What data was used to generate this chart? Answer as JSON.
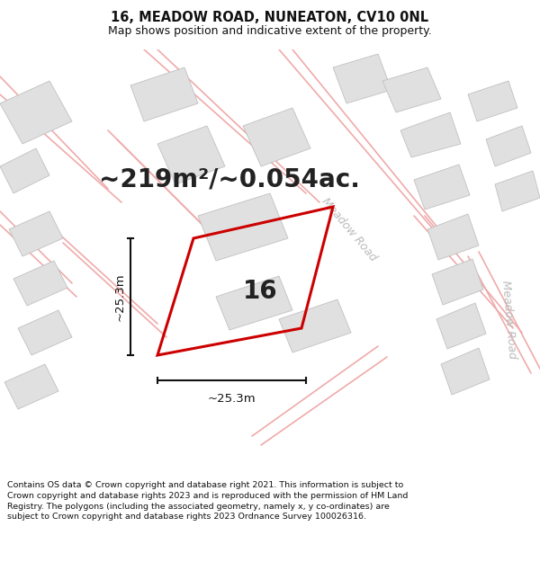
{
  "title": "16, MEADOW ROAD, NUNEATON, CV10 0NL",
  "subtitle": "Map shows position and indicative extent of the property.",
  "area_label": "~219m²/~0.054ac.",
  "property_number": "16",
  "dim_horizontal": "~25.3m",
  "dim_vertical": "~25.3m",
  "road_label_diag1": "Meadow Road",
  "road_label_diag2": "Meadow Road",
  "footer": "Contains OS data © Crown copyright and database right 2021. This information is subject to Crown copyright and database rights 2023 and is reproduced with the permission of HM Land Registry. The polygons (including the associated geometry, namely x, y co-ordinates) are subject to Crown copyright and database rights 2023 Ordnance Survey 100026316.",
  "map_bg": "#f2f2f2",
  "building_fill": "#e0e0e0",
  "building_edge": "#c0c0c0",
  "road_line_color": "#f0aaaa",
  "highlight_color": "#cc0000",
  "dim_line_color": "#111111",
  "road_label_color": "#bbbbbb",
  "title_color": "#111111",
  "footer_color": "#111111",
  "title_fontsize": 10.5,
  "subtitle_fontsize": 9,
  "area_fontsize": 20,
  "number_fontsize": 20,
  "dim_fontsize": 9.5,
  "road_label_fontsize": 9,
  "footer_fontsize": 6.8
}
